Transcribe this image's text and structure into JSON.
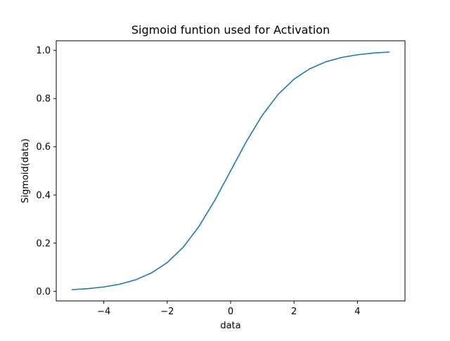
{
  "chart_data": {
    "type": "line",
    "title": "Sigmoid funtion used for Activation",
    "xlabel": "data",
    "ylabel": "Sigmoid(data)",
    "xlim": [
      -5.5,
      5.5
    ],
    "ylim": [
      -0.04,
      1.04
    ],
    "grid": false,
    "legend": "none",
    "x_ticks": [
      -4,
      -2,
      0,
      2,
      4
    ],
    "x_tick_labels": [
      "−4",
      "−2",
      "0",
      "2",
      "4"
    ],
    "y_ticks": [
      0.0,
      0.2,
      0.4,
      0.6,
      0.8,
      1.0
    ],
    "y_tick_labels": [
      "0.0",
      "0.2",
      "0.4",
      "0.6",
      "0.8",
      "1.0"
    ],
    "series": [
      {
        "color": "#1f77b4",
        "x": [
          -5.0,
          -4.5,
          -4.0,
          -3.5,
          -3.0,
          -2.5,
          -2.0,
          -1.5,
          -1.0,
          -0.5,
          0.0,
          0.5,
          1.0,
          1.5,
          2.0,
          2.5,
          3.0,
          3.5,
          4.0,
          4.5,
          5.0
        ],
        "y": [
          0.0067,
          0.011,
          0.018,
          0.0293,
          0.0474,
          0.0759,
          0.1192,
          0.1824,
          0.2689,
          0.3775,
          0.5,
          0.6225,
          0.7311,
          0.8176,
          0.8808,
          0.9241,
          0.9526,
          0.9707,
          0.982,
          0.989,
          0.9933
        ]
      }
    ]
  }
}
